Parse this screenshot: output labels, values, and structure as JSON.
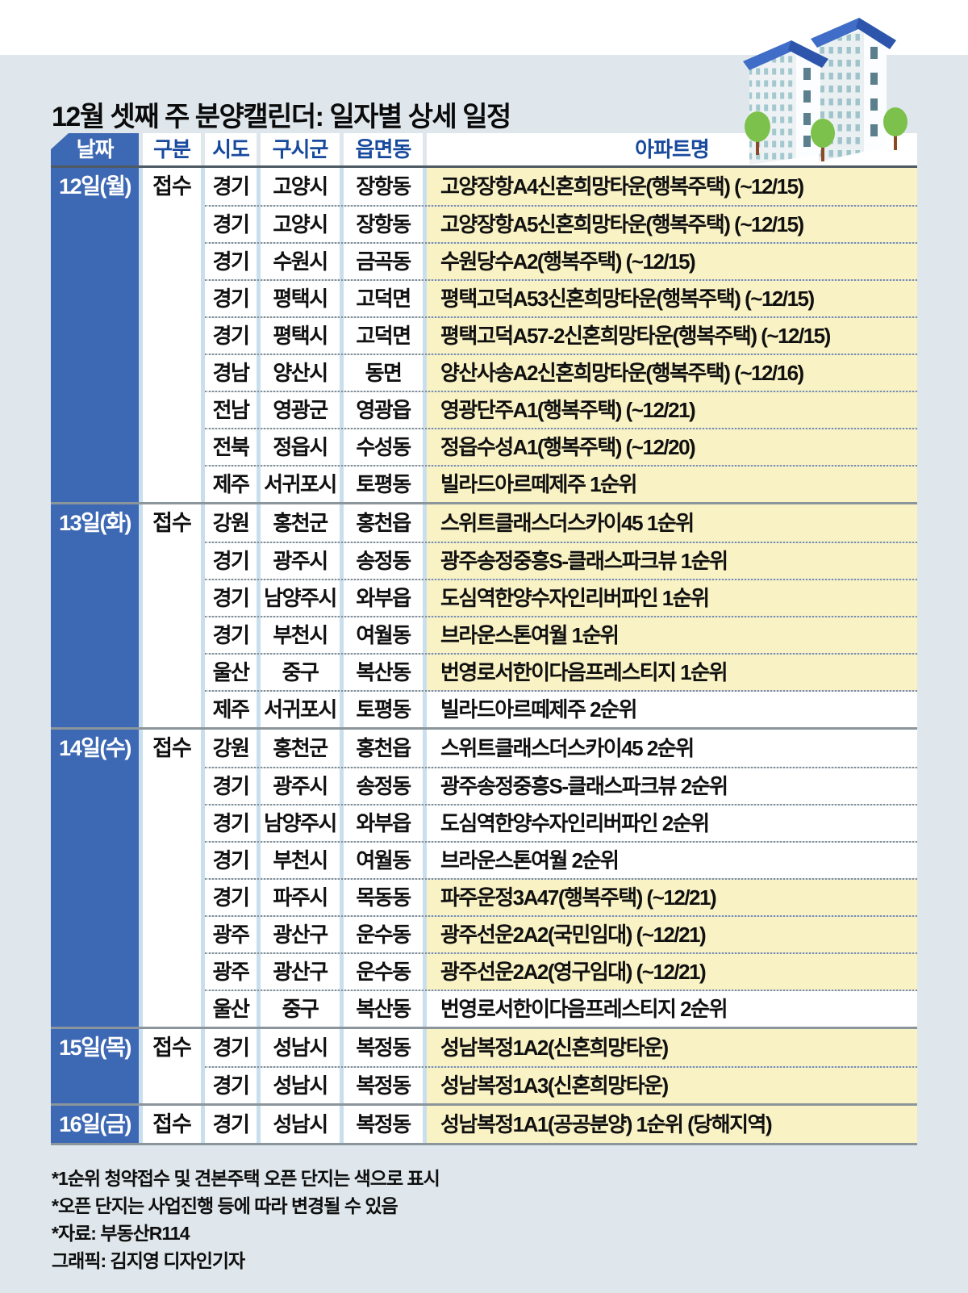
{
  "title": "12월 셋째 주 분양캘린더: 일자별 상세 일정",
  "icon": {
    "name": "apartment-buildings-icon"
  },
  "colors": {
    "page_background": "#dfe7ec",
    "accent_blue": "#3d68b3",
    "header_text_blue": "#17499d",
    "highlight_yellow": "#f9f2c4",
    "column_gap_blue": "#c9dfee",
    "roof_blue": "#3f6dc7",
    "tree_green": "#7cc14c"
  },
  "table": {
    "headers": [
      "날짜",
      "구분",
      "시도",
      "구시군",
      "읍면동",
      "아파트명"
    ],
    "sections": [
      {
        "date": "12일(월)",
        "category": "접수",
        "rows": [
          {
            "sido": "경기",
            "gusigun": "고양시",
            "eupmyeondong": "장항동",
            "apt": "고양장항A4신혼희망타운(행복주택) (~12/15)",
            "highlight": true
          },
          {
            "sido": "경기",
            "gusigun": "고양시",
            "eupmyeondong": "장항동",
            "apt": "고양장항A5신혼희망타운(행복주택) (~12/15)",
            "highlight": true
          },
          {
            "sido": "경기",
            "gusigun": "수원시",
            "eupmyeondong": "금곡동",
            "apt": "수원당수A2(행복주택) (~12/15)",
            "highlight": true
          },
          {
            "sido": "경기",
            "gusigun": "평택시",
            "eupmyeondong": "고덕면",
            "apt": "평택고덕A53신혼희망타운(행복주택) (~12/15)",
            "highlight": true
          },
          {
            "sido": "경기",
            "gusigun": "평택시",
            "eupmyeondong": "고덕면",
            "apt": "평택고덕A57-2신혼희망타운(행복주택) (~12/15)",
            "highlight": true
          },
          {
            "sido": "경남",
            "gusigun": "양산시",
            "eupmyeondong": "동면",
            "apt": "양산사송A2신혼희망타운(행복주택) (~12/16)",
            "highlight": true
          },
          {
            "sido": "전남",
            "gusigun": "영광군",
            "eupmyeondong": "영광읍",
            "apt": "영광단주A1(행복주택) (~12/21)",
            "highlight": true
          },
          {
            "sido": "전북",
            "gusigun": "정읍시",
            "eupmyeondong": "수성동",
            "apt": "정읍수성A1(행복주택) (~12/20)",
            "highlight": true
          },
          {
            "sido": "제주",
            "gusigun": "서귀포시",
            "eupmyeondong": "토평동",
            "apt": "빌라드아르떼제주 1순위",
            "highlight": true
          }
        ]
      },
      {
        "date": "13일(화)",
        "category": "접수",
        "rows": [
          {
            "sido": "강원",
            "gusigun": "홍천군",
            "eupmyeondong": "홍천읍",
            "apt": "스위트클래스더스카이45 1순위",
            "highlight": true
          },
          {
            "sido": "경기",
            "gusigun": "광주시",
            "eupmyeondong": "송정동",
            "apt": "광주송정중흥S-클래스파크뷰 1순위",
            "highlight": true
          },
          {
            "sido": "경기",
            "gusigun": "남양주시",
            "eupmyeondong": "와부읍",
            "apt": "도심역한양수자인리버파인 1순위",
            "highlight": true
          },
          {
            "sido": "경기",
            "gusigun": "부천시",
            "eupmyeondong": "여월동",
            "apt": "브라운스톤여월 1순위",
            "highlight": true
          },
          {
            "sido": "울산",
            "gusigun": "중구",
            "eupmyeondong": "복산동",
            "apt": "번영로서한이다음프레스티지 1순위",
            "highlight": true
          },
          {
            "sido": "제주",
            "gusigun": "서귀포시",
            "eupmyeondong": "토평동",
            "apt": "빌라드아르떼제주 2순위",
            "highlight": false
          }
        ]
      },
      {
        "date": "14일(수)",
        "category": "접수",
        "rows": [
          {
            "sido": "강원",
            "gusigun": "홍천군",
            "eupmyeondong": "홍천읍",
            "apt": "스위트클래스더스카이45 2순위",
            "highlight": false
          },
          {
            "sido": "경기",
            "gusigun": "광주시",
            "eupmyeondong": "송정동",
            "apt": "광주송정중흥S-클래스파크뷰 2순위",
            "highlight": false
          },
          {
            "sido": "경기",
            "gusigun": "남양주시",
            "eupmyeondong": "와부읍",
            "apt": "도심역한양수자인리버파인 2순위",
            "highlight": false
          },
          {
            "sido": "경기",
            "gusigun": "부천시",
            "eupmyeondong": "여월동",
            "apt": "브라운스톤여월 2순위",
            "highlight": false
          },
          {
            "sido": "경기",
            "gusigun": "파주시",
            "eupmyeondong": "목동동",
            "apt": "파주운정3A47(행복주택) (~12/21)",
            "highlight": true
          },
          {
            "sido": "광주",
            "gusigun": "광산구",
            "eupmyeondong": "운수동",
            "apt": "광주선운2A2(국민임대) (~12/21)",
            "highlight": true
          },
          {
            "sido": "광주",
            "gusigun": "광산구",
            "eupmyeondong": "운수동",
            "apt": "광주선운2A2(영구임대) (~12/21)",
            "highlight": true
          },
          {
            "sido": "울산",
            "gusigun": "중구",
            "eupmyeondong": "복산동",
            "apt": "번영로서한이다음프레스티지 2순위",
            "highlight": false
          }
        ]
      },
      {
        "date": "15일(목)",
        "category": "접수",
        "rows": [
          {
            "sido": "경기",
            "gusigun": "성남시",
            "eupmyeondong": "복정동",
            "apt": "성남복정1A2(신혼희망타운)",
            "highlight": true
          },
          {
            "sido": "경기",
            "gusigun": "성남시",
            "eupmyeondong": "복정동",
            "apt": "성남복정1A3(신혼희망타운)",
            "highlight": true
          }
        ]
      },
      {
        "date": "16일(금)",
        "category": "접수",
        "rows": [
          {
            "sido": "경기",
            "gusigun": "성남시",
            "eupmyeondong": "복정동",
            "apt": "성남복정1A1(공공분양) 1순위 (당해지역)",
            "highlight": true
          }
        ]
      }
    ]
  },
  "footnotes": [
    "*1순위 청약접수 및 견본주택 오픈 단지는 색으로 표시",
    "*오픈 단지는 사업진행 등에 따라 변경될 수 있음",
    "*자료: 부동산R114",
    "그래픽: 김지영 디자인기자"
  ]
}
